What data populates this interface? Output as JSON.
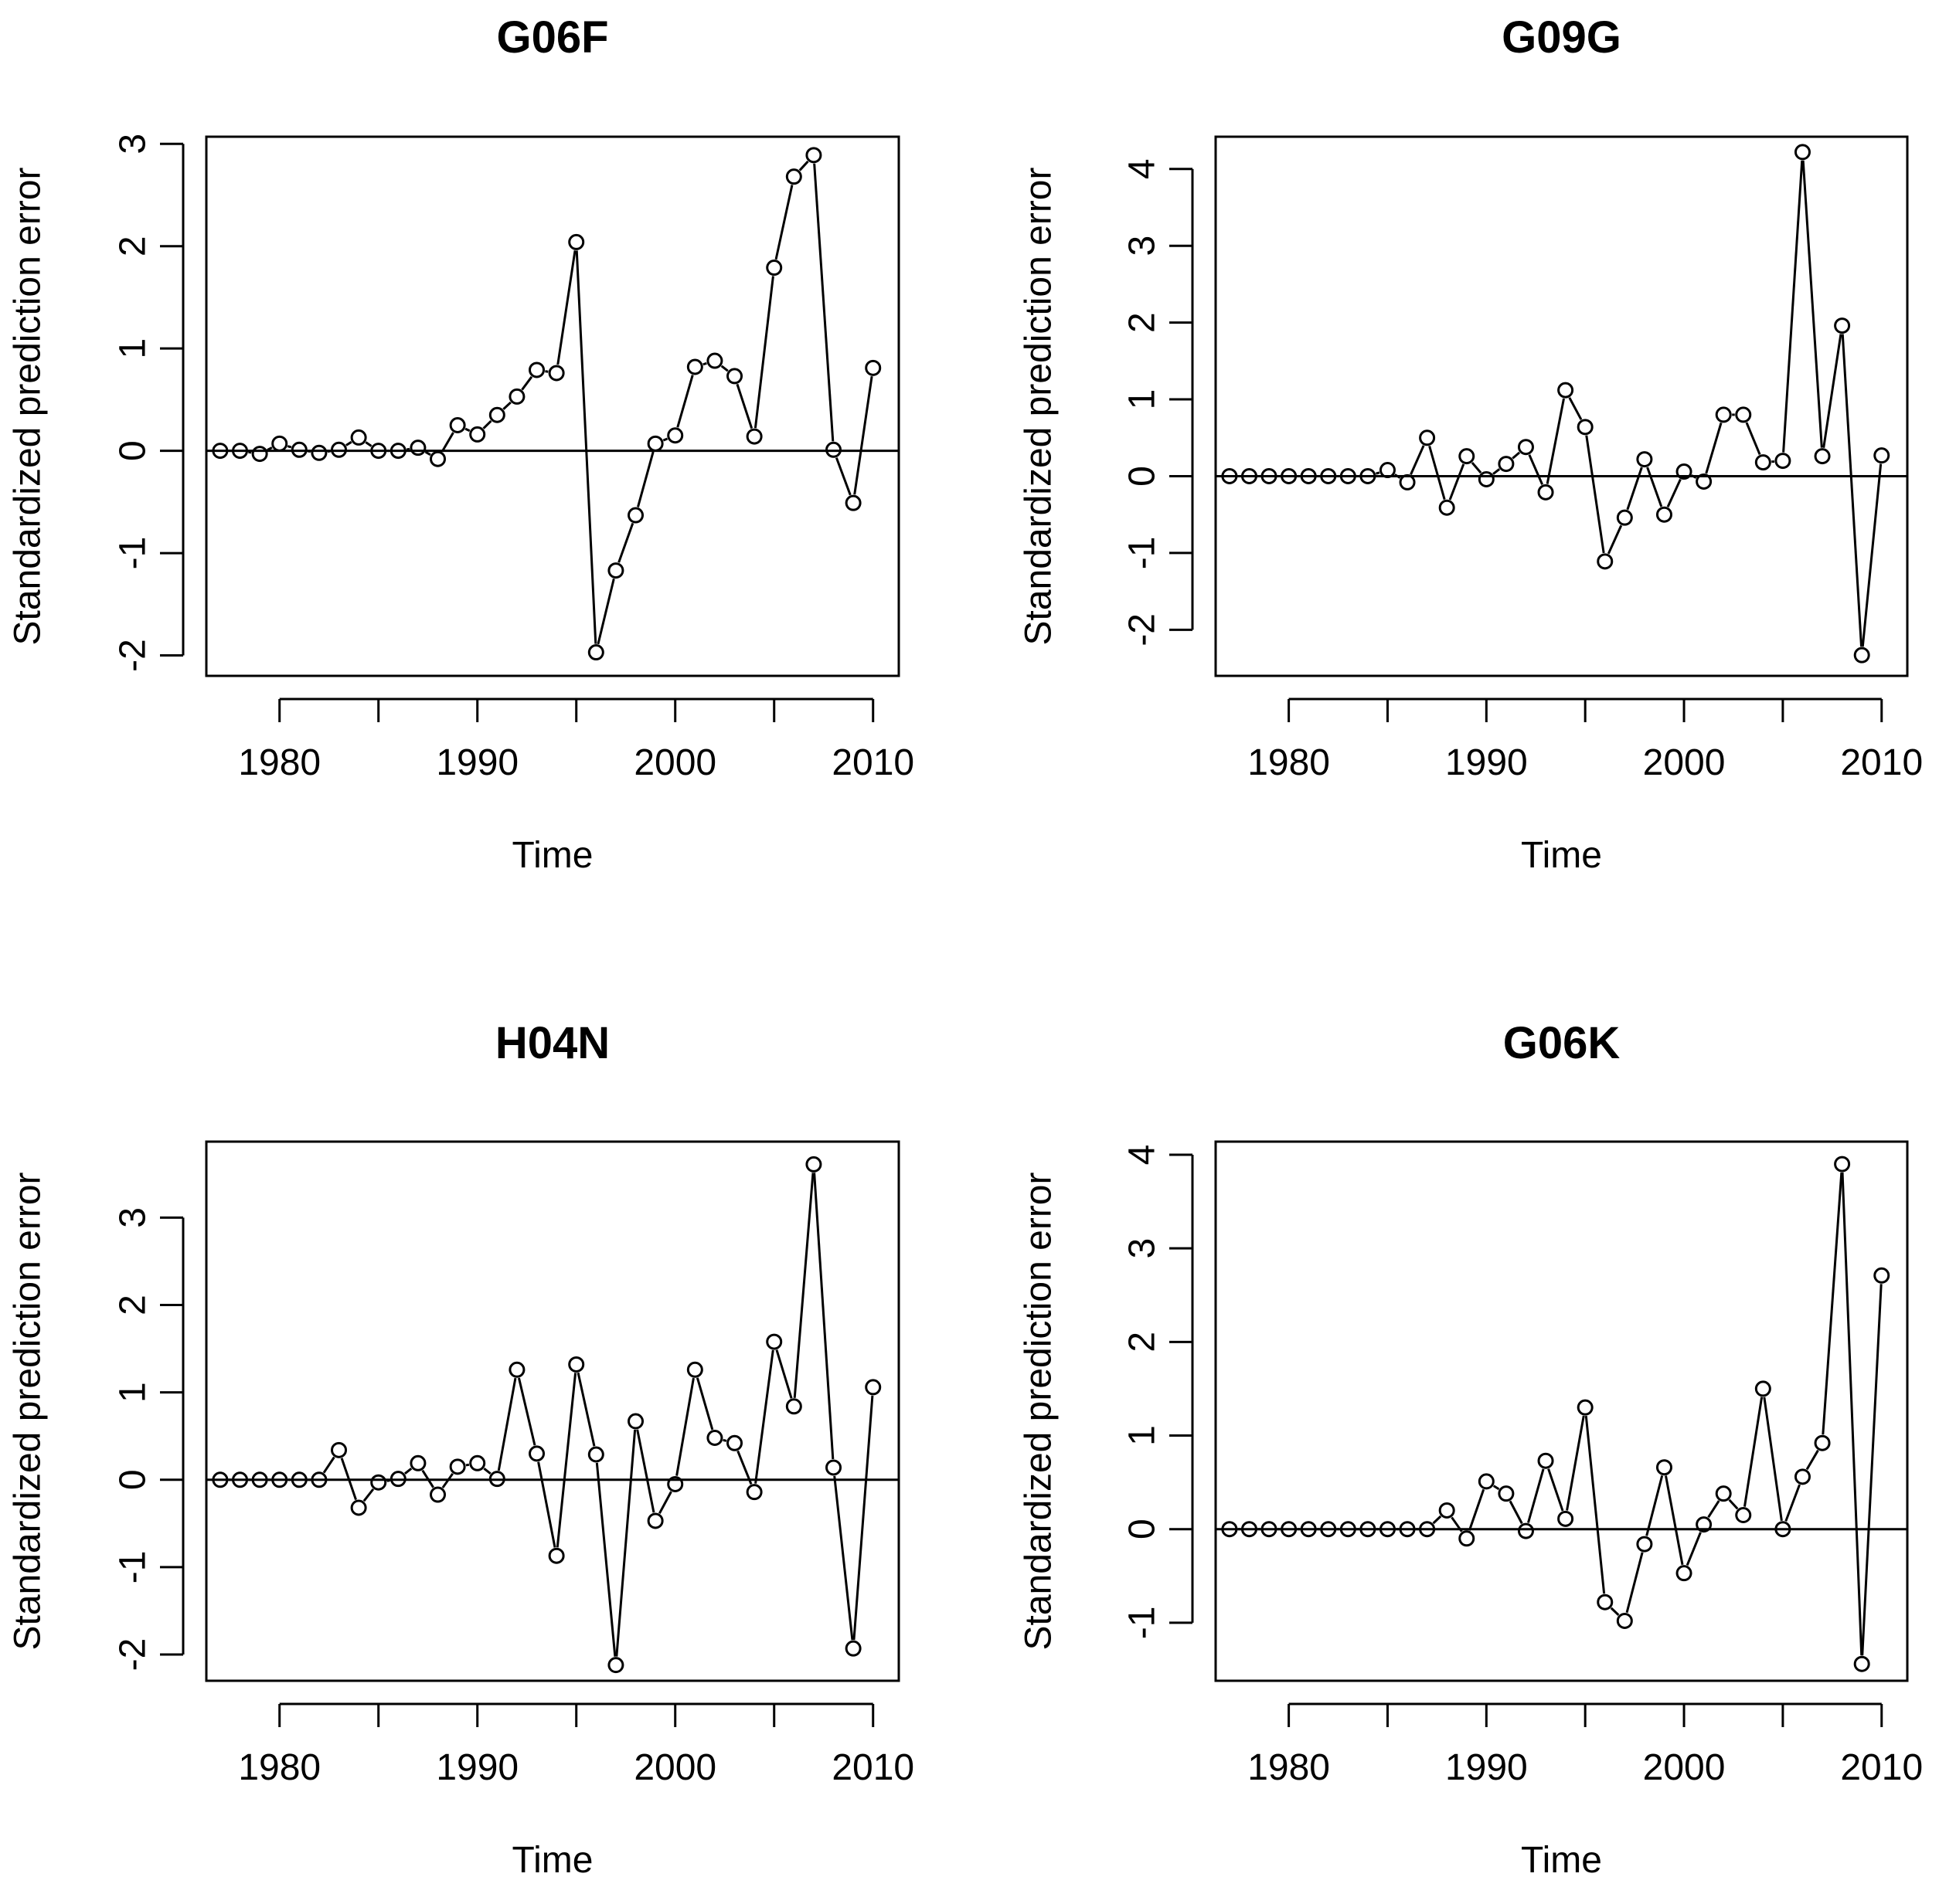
{
  "colors": {
    "line": "#000000",
    "background": "#ffffff"
  },
  "chart_data": [
    {
      "type": "line",
      "title": "G06F",
      "xlabel": "Time",
      "ylabel": "Standardized prediction error",
      "xlim": [
        1976.3,
        2011.3
      ],
      "ylim": [
        -2.2,
        3.07
      ],
      "xticks": [
        1980,
        1985,
        1990,
        1995,
        2000,
        2005,
        2010
      ],
      "xtick_labels": [
        "1980",
        "",
        "1990",
        "",
        "2000",
        "",
        "2010"
      ],
      "yticks": [
        -2,
        -1,
        0,
        1,
        2,
        3
      ],
      "ytick_labels": [
        "-2",
        "-1",
        "0",
        "1",
        "2",
        "3"
      ],
      "hline": 0,
      "x": [
        1977,
        1978,
        1979,
        1980,
        1981,
        1982,
        1983,
        1984,
        1985,
        1986,
        1987,
        1988,
        1989,
        1990,
        1991,
        1992,
        1993,
        1994,
        1995,
        1996,
        1997,
        1998,
        1999,
        2000,
        2001,
        2002,
        2003,
        2004,
        2005,
        2006,
        2007,
        2008,
        2009,
        2010
      ],
      "values": [
        0,
        0,
        -0.03,
        0.07,
        0.01,
        -0.02,
        0.01,
        0.13,
        0,
        0,
        0.03,
        -0.08,
        0.25,
        0.16,
        0.35,
        0.53,
        0.79,
        0.76,
        2.04,
        -1.97,
        -1.17,
        -0.63,
        0.07,
        0.15,
        0.82,
        0.88,
        0.73,
        0.14,
        1.79,
        2.68,
        2.89,
        0.01,
        -0.51,
        0.81
      ]
    },
    {
      "type": "line",
      "title": "G09G",
      "xlabel": "Time",
      "ylabel": "Standardized prediction error",
      "xlim": [
        1976.3,
        2011.3
      ],
      "ylim": [
        -2.6,
        4.42
      ],
      "xticks": [
        1980,
        1985,
        1990,
        1995,
        2000,
        2005,
        2010
      ],
      "xtick_labels": [
        "1980",
        "",
        "1990",
        "",
        "2000",
        "",
        "2010"
      ],
      "yticks": [
        -2,
        -1,
        0,
        1,
        2,
        3,
        4
      ],
      "ytick_labels": [
        "-2",
        "-1",
        "0",
        "1",
        "2",
        "3",
        "4"
      ],
      "hline": 0,
      "x": [
        1977,
        1978,
        1979,
        1980,
        1981,
        1982,
        1983,
        1984,
        1985,
        1986,
        1987,
        1988,
        1989,
        1990,
        1991,
        1992,
        1993,
        1994,
        1995,
        1996,
        1997,
        1998,
        1999,
        2000,
        2001,
        2002,
        2003,
        2004,
        2005,
        2006,
        2007,
        2008,
        2009,
        2010
      ],
      "values": [
        0,
        0,
        0,
        0,
        0,
        0,
        0,
        0,
        0.08,
        -0.08,
        0.5,
        -0.41,
        0.26,
        -0.04,
        0.16,
        0.38,
        -0.21,
        1.12,
        0.64,
        -1.11,
        -0.54,
        0.22,
        -0.5,
        0.06,
        -0.07,
        0.8,
        0.8,
        0.18,
        0.2,
        4.22,
        0.26,
        1.96,
        -2.33,
        0.27
      ]
    },
    {
      "type": "line",
      "title": "H04N",
      "xlabel": "Time",
      "ylabel": "Standardized prediction error",
      "xlim": [
        1976.3,
        2011.3
      ],
      "ylim": [
        -2.3,
        3.87
      ],
      "xticks": [
        1980,
        1985,
        1990,
        1995,
        2000,
        2005,
        2010
      ],
      "xtick_labels": [
        "1980",
        "",
        "1990",
        "",
        "2000",
        "",
        "2010"
      ],
      "yticks": [
        -2,
        -1,
        0,
        1,
        2,
        3
      ],
      "ytick_labels": [
        "-2",
        "-1",
        "0",
        "1",
        "2",
        "3"
      ],
      "hline": 0,
      "x": [
        1977,
        1978,
        1979,
        1980,
        1981,
        1982,
        1983,
        1984,
        1985,
        1986,
        1987,
        1988,
        1989,
        1990,
        1991,
        1992,
        1993,
        1994,
        1995,
        1996,
        1997,
        1998,
        1999,
        2000,
        2001,
        2002,
        2003,
        2004,
        2005,
        2006,
        2007,
        2008,
        2009,
        2010
      ],
      "values": [
        0,
        0,
        0,
        0,
        0,
        0,
        0.34,
        -0.32,
        -0.03,
        0.01,
        0.19,
        -0.17,
        0.15,
        0.19,
        0.01,
        1.26,
        0.3,
        -0.87,
        1.32,
        0.29,
        -2.12,
        0.67,
        -0.47,
        -0.05,
        1.26,
        0.48,
        0.42,
        -0.14,
        1.58,
        0.84,
        3.61,
        0.14,
        -1.93,
        1.06
      ]
    },
    {
      "type": "line",
      "title": "G06K",
      "xlabel": "Time",
      "ylabel": "Standardized prediction error",
      "xlim": [
        1976.3,
        2011.3
      ],
      "ylim": [
        -1.62,
        4.14
      ],
      "xticks": [
        1980,
        1985,
        1990,
        1995,
        2000,
        2005,
        2010
      ],
      "xtick_labels": [
        "1980",
        "",
        "1990",
        "",
        "2000",
        "",
        "2010"
      ],
      "yticks": [
        -1,
        0,
        1,
        2,
        3,
        4
      ],
      "ytick_labels": [
        "-1",
        "0",
        "1",
        "2",
        "3",
        "4"
      ],
      "hline": 0,
      "x": [
        1977,
        1978,
        1979,
        1980,
        1981,
        1982,
        1983,
        1984,
        1985,
        1986,
        1987,
        1988,
        1989,
        1990,
        1991,
        1992,
        1993,
        1994,
        1995,
        1996,
        1997,
        1998,
        1999,
        2000,
        2001,
        2002,
        2003,
        2004,
        2005,
        2006,
        2007,
        2008,
        2009,
        2010
      ],
      "values": [
        0,
        0,
        0,
        0,
        0,
        0,
        0,
        0,
        0,
        0,
        0,
        0.2,
        -0.1,
        0.51,
        0.38,
        -0.02,
        0.73,
        0.11,
        1.3,
        -0.78,
        -0.98,
        -0.16,
        0.66,
        -0.47,
        0.05,
        0.38,
        0.15,
        1.5,
        0,
        0.56,
        0.92,
        3.9,
        -1.44,
        2.71
      ]
    }
  ]
}
